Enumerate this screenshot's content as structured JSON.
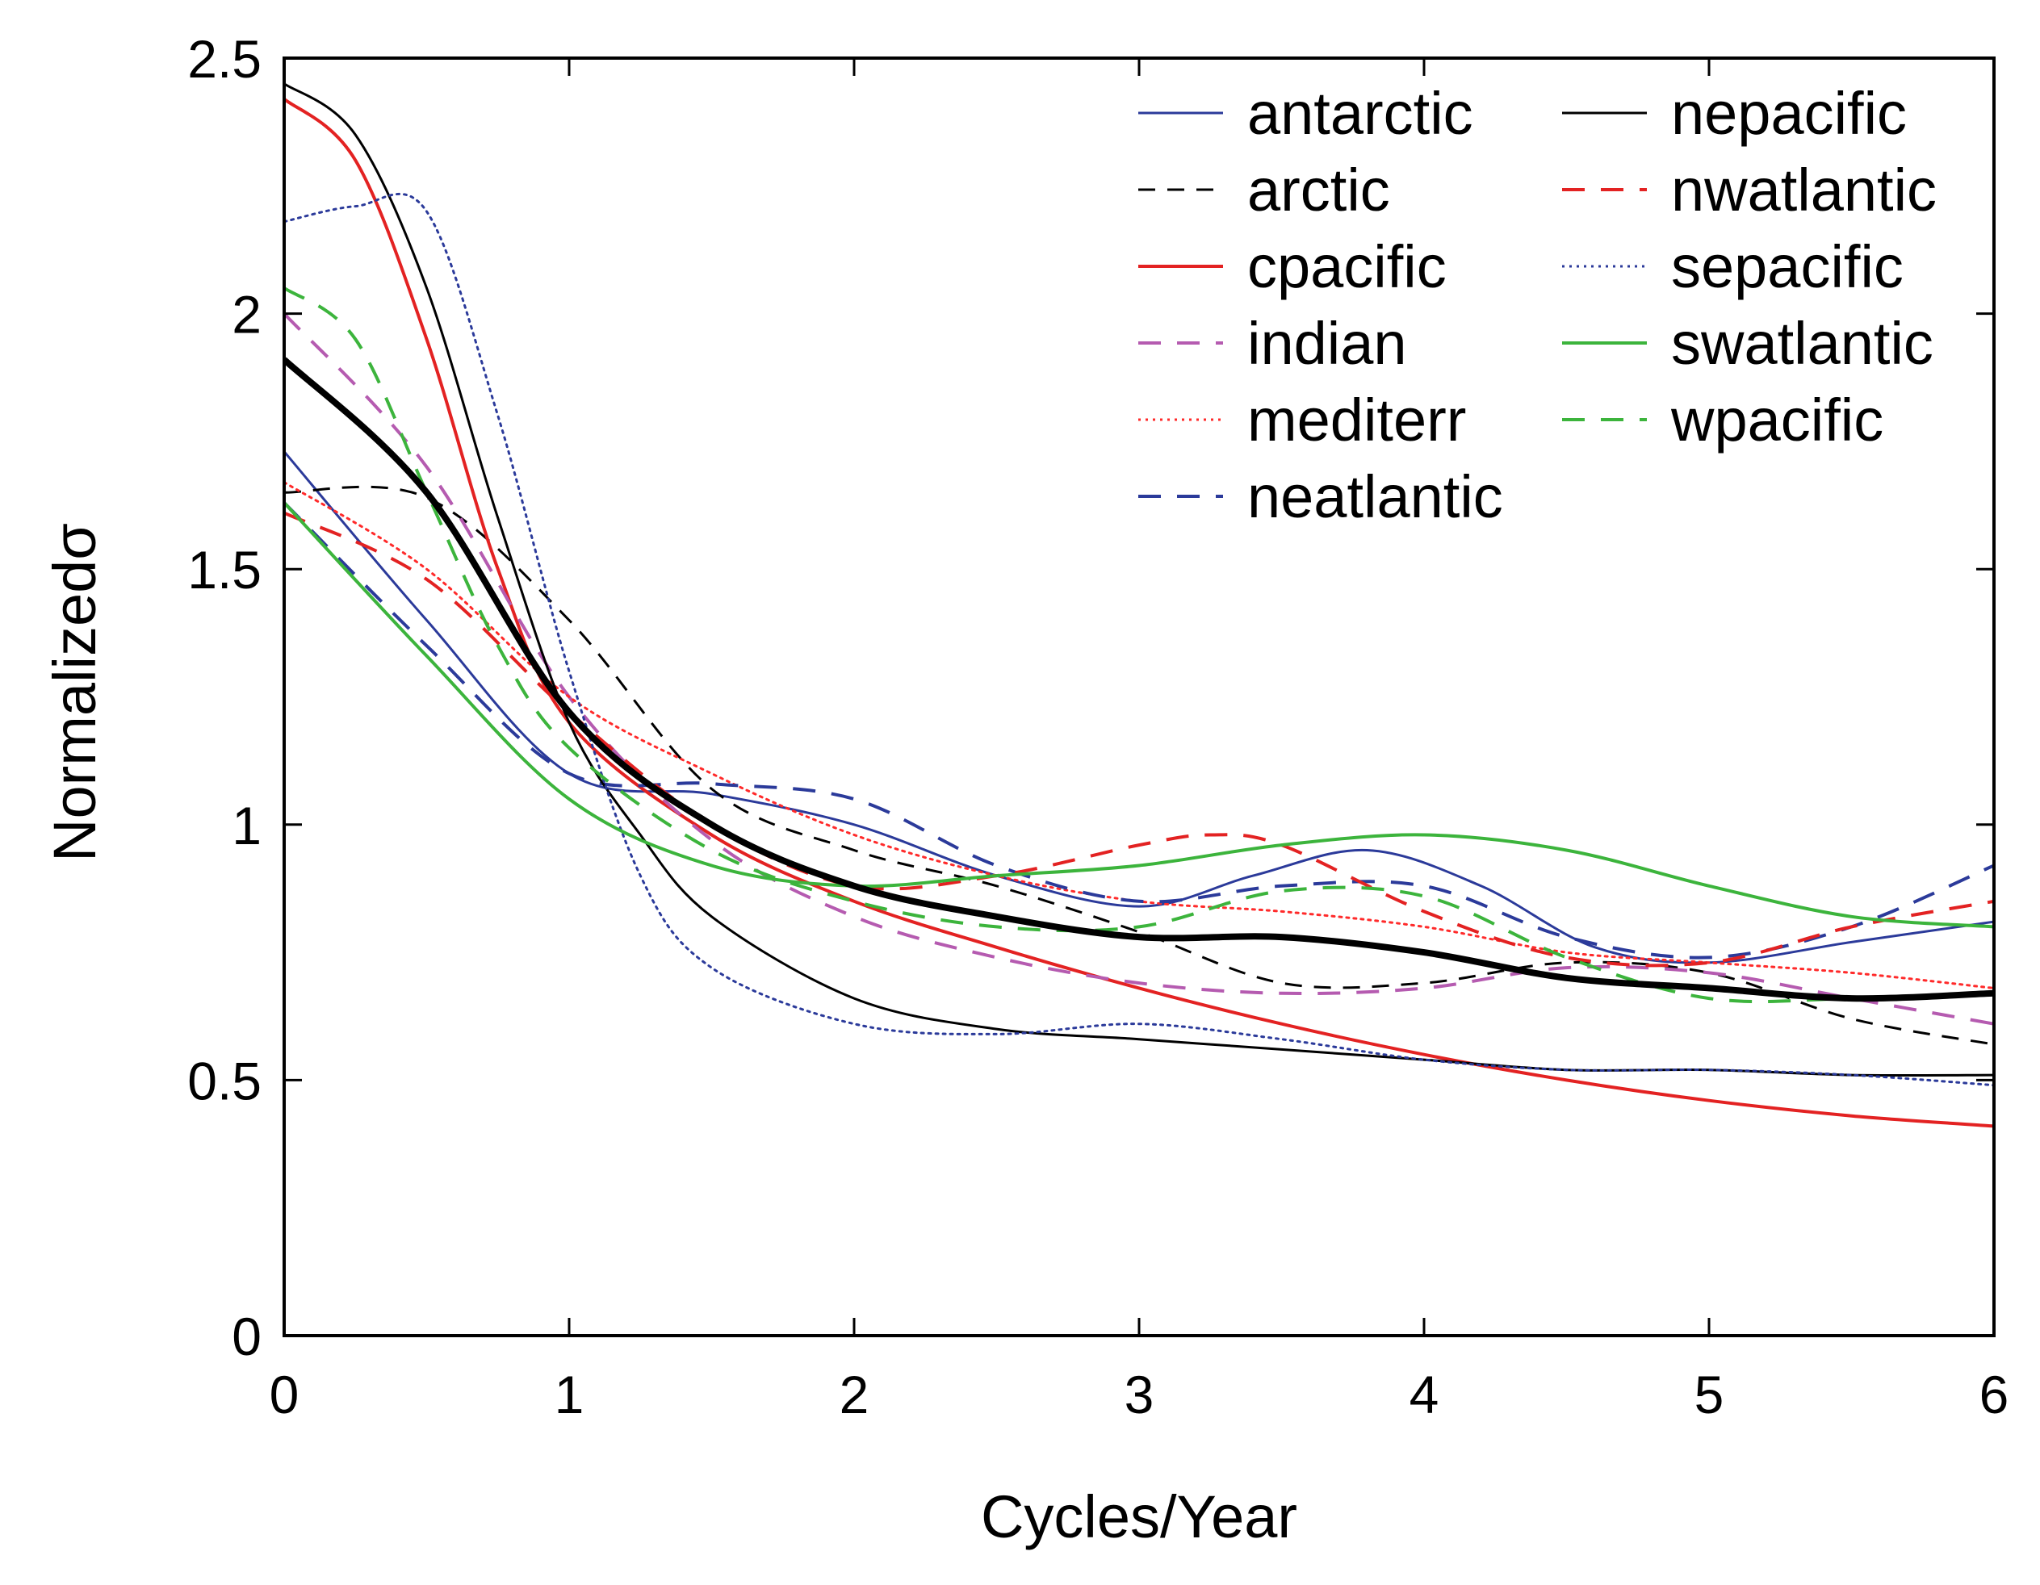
{
  "chart_data": {
    "type": "line",
    "xlabel": "Cycles/Year",
    "ylabel": "Normalizedσ",
    "xlim": [
      0,
      6
    ],
    "ylim": [
      0,
      2.5
    ],
    "xticks": [
      0,
      1,
      2,
      3,
      4,
      5,
      6
    ],
    "yticks": [
      0,
      0.5,
      1,
      1.5,
      2,
      2.5
    ],
    "xtick_labels": [
      "0",
      "1",
      "2",
      "3",
      "4",
      "5",
      "6"
    ],
    "ytick_labels": [
      "0",
      "0.5",
      "1",
      "1.5",
      "2",
      "2.5"
    ],
    "grid": false,
    "legend_position": "top-right",
    "legend_columns": 2,
    "series": [
      {
        "name": "antarctic",
        "color": "#2b3a9a",
        "dash": "solid",
        "width": 3,
        "x": [
          0,
          0.5,
          1,
          1.5,
          2,
          2.5,
          3,
          3.4,
          3.8,
          4.2,
          4.6,
          5,
          5.5,
          6
        ],
        "y": [
          1.73,
          1.4,
          1.1,
          1.06,
          1.0,
          0.9,
          0.84,
          0.9,
          0.95,
          0.88,
          0.76,
          0.73,
          0.77,
          0.81
        ]
      },
      {
        "name": "arctic",
        "color": "#000000",
        "dash": "dashed",
        "width": 3,
        "x": [
          0,
          0.5,
          1,
          1.5,
          2,
          2.5,
          3,
          3.5,
          4,
          4.5,
          5,
          5.5,
          6
        ],
        "y": [
          1.65,
          1.64,
          1.4,
          1.07,
          0.95,
          0.88,
          0.79,
          0.69,
          0.69,
          0.73,
          0.71,
          0.62,
          0.57
        ]
      },
      {
        "name": "cpacific",
        "color": "#e32222",
        "dash": "solid",
        "width": 4,
        "x": [
          0,
          0.25,
          0.5,
          0.75,
          1,
          1.5,
          2,
          2.5,
          3,
          3.5,
          4,
          4.5,
          5,
          5.5,
          6
        ],
        "y": [
          2.42,
          2.3,
          1.95,
          1.5,
          1.2,
          0.98,
          0.85,
          0.76,
          0.68,
          0.61,
          0.55,
          0.5,
          0.46,
          0.43,
          0.41
        ]
      },
      {
        "name": "indian",
        "color": "#b55bb0",
        "dash": "dashed",
        "width": 4,
        "x": [
          0,
          0.5,
          1,
          1.5,
          2,
          2.5,
          3,
          3.5,
          4,
          4.5,
          5,
          5.5,
          6
        ],
        "y": [
          2.0,
          1.7,
          1.25,
          0.97,
          0.82,
          0.74,
          0.69,
          0.67,
          0.68,
          0.72,
          0.71,
          0.66,
          0.61
        ]
      },
      {
        "name": "mediterr",
        "color": "#ff2a2a",
        "dash": "dotted",
        "width": 3,
        "x": [
          0,
          0.5,
          1,
          1.5,
          2,
          2.5,
          3,
          3.5,
          4,
          4.5,
          5,
          5.5,
          6
        ],
        "y": [
          1.67,
          1.5,
          1.25,
          1.1,
          0.98,
          0.9,
          0.85,
          0.83,
          0.8,
          0.75,
          0.73,
          0.71,
          0.68
        ]
      },
      {
        "name": "neatlantic",
        "color": "#2b3a9a",
        "dash": "dashed",
        "width": 4,
        "x": [
          0,
          0.5,
          1,
          1.5,
          2,
          2.5,
          3,
          3.5,
          4,
          4.5,
          5,
          5.5,
          6
        ],
        "y": [
          1.63,
          1.35,
          1.1,
          1.08,
          1.05,
          0.92,
          0.85,
          0.88,
          0.88,
          0.78,
          0.74,
          0.8,
          0.92
        ]
      },
      {
        "name": "nepacific",
        "color": "#000000",
        "dash": "solid",
        "width": 3,
        "x": [
          0,
          0.25,
          0.5,
          0.75,
          1,
          1.25,
          1.5,
          2,
          2.5,
          3,
          3.5,
          4,
          4.5,
          5,
          5.5,
          6
        ],
        "y": [
          2.45,
          2.35,
          2.05,
          1.6,
          1.2,
          0.98,
          0.82,
          0.66,
          0.6,
          0.58,
          0.56,
          0.54,
          0.52,
          0.52,
          0.51,
          0.51
        ]
      },
      {
        "name": "nwatlantic",
        "color": "#e32222",
        "dash": "dashed",
        "width": 4,
        "x": [
          0,
          0.5,
          1,
          1.5,
          2,
          2.5,
          3,
          3.25,
          3.5,
          4,
          4.5,
          5,
          5.5,
          6
        ],
        "y": [
          1.61,
          1.48,
          1.22,
          1.0,
          0.88,
          0.9,
          0.96,
          0.98,
          0.96,
          0.83,
          0.74,
          0.73,
          0.8,
          0.85
        ]
      },
      {
        "name": "sepacific",
        "color": "#2b3a9a",
        "dash": "dotted",
        "width": 3,
        "x": [
          0,
          0.25,
          0.5,
          0.75,
          1,
          1.25,
          1.5,
          2,
          2.5,
          3,
          3.5,
          4,
          4.5,
          5,
          5.5,
          6
        ],
        "y": [
          2.18,
          2.21,
          2.2,
          1.8,
          1.3,
          0.9,
          0.72,
          0.61,
          0.59,
          0.61,
          0.58,
          0.54,
          0.52,
          0.52,
          0.51,
          0.49
        ]
      },
      {
        "name": "swatlantic",
        "color": "#3cb43c",
        "dash": "solid",
        "width": 4,
        "x": [
          0,
          0.5,
          1,
          1.5,
          2,
          2.5,
          3,
          3.5,
          4,
          4.5,
          5,
          5.5,
          6
        ],
        "y": [
          1.63,
          1.33,
          1.05,
          0.92,
          0.88,
          0.9,
          0.92,
          0.96,
          0.98,
          0.95,
          0.88,
          0.82,
          0.8
        ]
      },
      {
        "name": "wpacific",
        "color": "#3cb43c",
        "dash": "dashed",
        "width": 4,
        "x": [
          0,
          0.25,
          0.5,
          0.75,
          1,
          1.5,
          2,
          2.5,
          3,
          3.5,
          4,
          4.5,
          5,
          5.5,
          6
        ],
        "y": [
          2.05,
          1.95,
          1.65,
          1.35,
          1.15,
          0.95,
          0.85,
          0.8,
          0.8,
          0.87,
          0.86,
          0.74,
          0.66,
          0.66,
          0.67
        ]
      },
      {
        "name": "",
        "color": "#000000",
        "dash": "solid",
        "width": 8,
        "x": [
          0,
          0.5,
          1,
          1.5,
          2,
          2.5,
          3,
          3.5,
          4,
          4.5,
          5,
          5.5,
          6
        ],
        "y": [
          1.91,
          1.65,
          1.22,
          1.0,
          0.88,
          0.82,
          0.78,
          0.78,
          0.75,
          0.7,
          0.68,
          0.66,
          0.67
        ]
      }
    ]
  }
}
